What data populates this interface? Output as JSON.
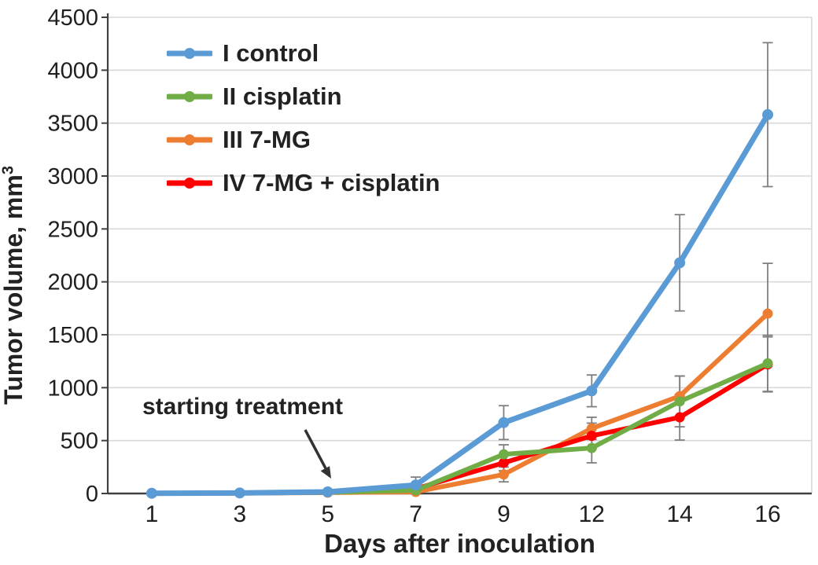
{
  "chart_data": {
    "type": "line",
    "title": "",
    "xlabel": "Days after inoculation",
    "ylabel": "Tumor volume, mm",
    "ylabel_superscript": "3",
    "categories": [
      1,
      3,
      5,
      7,
      9,
      12,
      14,
      16
    ],
    "ylim": [
      0,
      4500
    ],
    "ytick_step": 500,
    "grid": "horizontal",
    "legend_position": "top-left-inside",
    "annotation": {
      "text": "starting treatment",
      "target_day": 5
    },
    "series": [
      {
        "name": "I control",
        "color": "#5B9BD5",
        "values": [
          2,
          5,
          15,
          80,
          670,
          970,
          2180,
          3580
        ],
        "errors": [
          0,
          0,
          0,
          75,
          160,
          150,
          455,
          680
        ]
      },
      {
        "name": "II cisplatin",
        "color": "#70AD47",
        "values": [
          2,
          4,
          10,
          30,
          370,
          430,
          870,
          1230
        ],
        "errors": [
          0,
          0,
          0,
          0,
          90,
          140,
          240,
          265
        ]
      },
      {
        "name": "III 7-MG",
        "color": "#ED7D31",
        "values": [
          2,
          4,
          8,
          15,
          180,
          615,
          920,
          1700
        ],
        "errors": [
          0,
          0,
          0,
          0,
          70,
          105,
          190,
          475
        ]
      },
      {
        "name": "IV 7-MG + cisplatin",
        "color": "#FF0000",
        "values": [
          2,
          4,
          10,
          45,
          290,
          545,
          720,
          1220
        ],
        "errors": [
          0,
          0,
          0,
          30,
          75,
          120,
          215,
          260
        ]
      }
    ]
  },
  "styles": {
    "gridline_color": "#d9d9d9",
    "axis_color": "#404040",
    "error_bar_color": "#7f7f7f",
    "text_color": "#1f1f1f",
    "annotation_arrow_color": "#333333"
  }
}
